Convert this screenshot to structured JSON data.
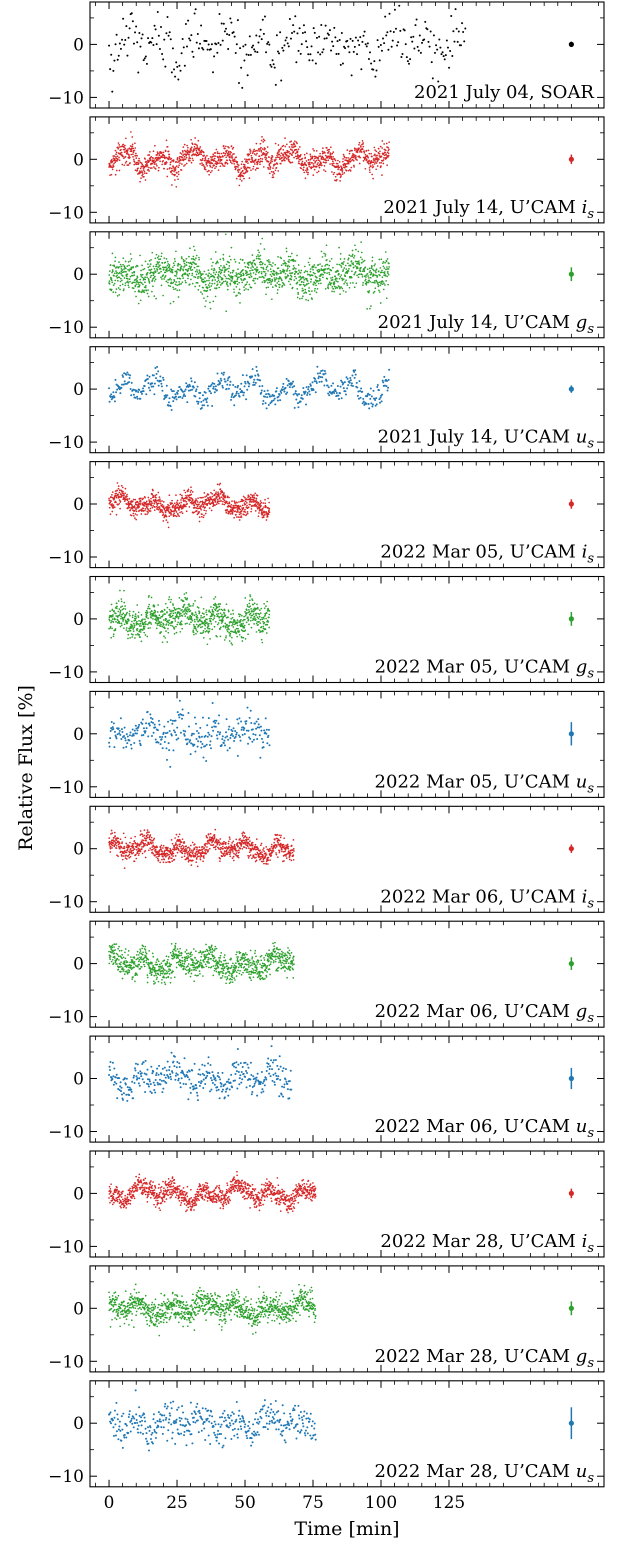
{
  "chart_data": {
    "type": "scatter",
    "xlabel": "Time [min]",
    "ylabel": "Relative Flux [%]",
    "xlim": [
      -7,
      182
    ],
    "ylim": [
      -12,
      8
    ],
    "xticks": [
      0,
      25,
      50,
      75,
      100,
      125
    ],
    "xtick_labels": [
      "0",
      "25",
      "50",
      "75",
      "100",
      "125"
    ],
    "yticks": [
      0,
      -10
    ],
    "ytick_labels": [
      "0",
      "−10"
    ],
    "colors": {
      "black": "#000000",
      "red": "#d62728",
      "green": "#2ca02c",
      "blue": "#1f77b4"
    },
    "panels": [
      {
        "label_main": "2021 July 04, SOAR",
        "label_sub": "",
        "color": "black",
        "t_end": 131,
        "n_points": 330,
        "scatter": 2.5,
        "errorbar": 0.5,
        "amplitude": 1.8
      },
      {
        "label_main": "2021 July 14, U’CAM i",
        "label_sub": "s",
        "color": "red",
        "t_end": 103,
        "n_points": 1400,
        "scatter": 1.1,
        "errorbar": 0.9,
        "amplitude": 1.2
      },
      {
        "label_main": "2021 July 14, U’CAM g",
        "label_sub": "s",
        "color": "green",
        "t_end": 103,
        "n_points": 1400,
        "scatter": 1.8,
        "errorbar": 1.3,
        "amplitude": 1.0
      },
      {
        "label_main": "2021 July 14, U’CAM u",
        "label_sub": "s",
        "color": "blue",
        "t_end": 103,
        "n_points": 520,
        "scatter": 1.0,
        "errorbar": 0.7,
        "amplitude": 1.6
      },
      {
        "label_main": "2022 Mar 05, U’CAM i",
        "label_sub": "s",
        "color": "red",
        "t_end": 59,
        "n_points": 900,
        "scatter": 1.0,
        "errorbar": 0.9,
        "amplitude": 1.0
      },
      {
        "label_main": "2022 Mar 05, U’CAM g",
        "label_sub": "s",
        "color": "green",
        "t_end": 59,
        "n_points": 900,
        "scatter": 1.5,
        "errorbar": 1.3,
        "amplitude": 1.0
      },
      {
        "label_main": "2022 Mar 05, U’CAM u",
        "label_sub": "s",
        "color": "blue",
        "t_end": 59,
        "n_points": 300,
        "scatter": 1.7,
        "errorbar": 2.2,
        "amplitude": 1.0
      },
      {
        "label_main": "2022 Mar 06, U’CAM i",
        "label_sub": "s",
        "color": "red",
        "t_end": 68,
        "n_points": 1000,
        "scatter": 0.9,
        "errorbar": 0.8,
        "amplitude": 1.0
      },
      {
        "label_main": "2022 Mar 06, U’CAM g",
        "label_sub": "s",
        "color": "green",
        "t_end": 68,
        "n_points": 1000,
        "scatter": 1.3,
        "errorbar": 1.2,
        "amplitude": 1.0
      },
      {
        "label_main": "2022 Mar 06, U’CAM u",
        "label_sub": "s",
        "color": "blue",
        "t_end": 67,
        "n_points": 380,
        "scatter": 1.6,
        "errorbar": 2.0,
        "amplitude": 1.2
      },
      {
        "label_main": "2022 Mar 28, U’CAM i",
        "label_sub": "s",
        "color": "red",
        "t_end": 76,
        "n_points": 1100,
        "scatter": 0.9,
        "errorbar": 0.9,
        "amplitude": 1.0
      },
      {
        "label_main": "2022 Mar 28, U’CAM g",
        "label_sub": "s",
        "color": "green",
        "t_end": 76,
        "n_points": 1100,
        "scatter": 1.3,
        "errorbar": 1.3,
        "amplitude": 1.0
      },
      {
        "label_main": "2022 Mar 28, U’CAM u",
        "label_sub": "s",
        "color": "blue",
        "t_end": 76,
        "n_points": 420,
        "scatter": 1.7,
        "errorbar": 3.0,
        "amplitude": 1.0
      }
    ]
  }
}
